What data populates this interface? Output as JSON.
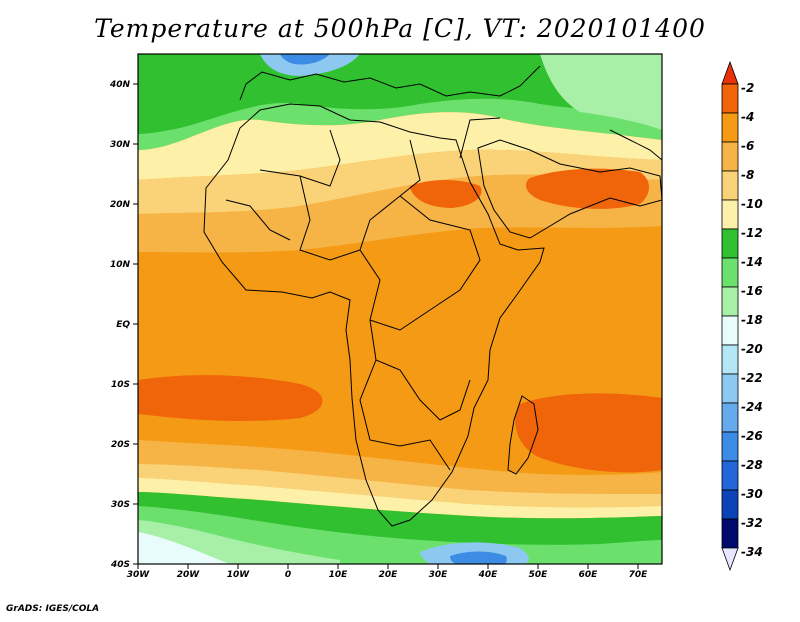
{
  "title": "Temperature at 500hPa [C], VT: 2020101400",
  "credit": "GrADS: IGES/COLA",
  "map": {
    "lon_labels": [
      "30W",
      "20W",
      "10W",
      "0",
      "10E",
      "20E",
      "30E",
      "40E",
      "50E",
      "60E",
      "70E"
    ],
    "lat_labels": [
      "40N",
      "30N",
      "20N",
      "10N",
      "EQ",
      "10S",
      "20S",
      "30S",
      "40S"
    ]
  },
  "colorbar": {
    "labels": [
      "-2",
      "-4",
      "-6",
      "-8",
      "-10",
      "-12",
      "-14",
      "-16",
      "-18",
      "-20",
      "-22",
      "-24",
      "-26",
      "-28",
      "-30",
      "-32",
      "-34"
    ],
    "colors": [
      "#e8320a",
      "#f0640a",
      "#f59a14",
      "#f7b446",
      "#fad278",
      "#fdf0a8",
      "#30c030",
      "#6ce06c",
      "#a8f0a8",
      "#e8fcfc",
      "#b4e6f6",
      "#8cc8f0",
      "#64aaec",
      "#3c8ce6",
      "#2266d8",
      "#0c44b8",
      "#000a6e"
    ]
  }
}
